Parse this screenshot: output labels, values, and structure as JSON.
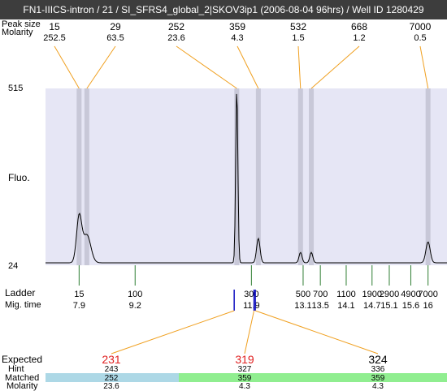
{
  "title": "FN1-IIICS-intron / 21 / SI_SFRS4_global_2|SKOV3ip1 (2006-08-04 96hrs) / Well ID 1280429",
  "labels": {
    "peak_size": "Peak size",
    "molarity": "Molarity",
    "fluo": "Fluo.",
    "ladder": "Ladder",
    "mig_time": "Mig. time",
    "expected": "Expected",
    "hint": "Hint",
    "matched": "Matched",
    "molarity_bottom": "Molarity"
  },
  "colors": {
    "plot_bg": "#e6e6f5",
    "band": "#c8c8d8",
    "connector": "#f0a020",
    "ladder_tick": "#2e7d32",
    "marker": "#1010c0",
    "expected_text": "#e02020",
    "matched_bg_1": "#add8e6",
    "matched_bg_2": "#90ee90"
  },
  "chart_data": {
    "type": "line",
    "title": "FN1-IIICS-intron / 21 / SI_SFRS4_global_2|SKOV3ip1 (2006-08-04 96hrs) / Well ID 1280429",
    "ylabel": "Fluo.",
    "ylim": [
      24,
      515
    ],
    "y_ticks": [
      "515",
      "24"
    ],
    "peaks": [
      {
        "size": "15",
        "molarity": "252.5",
        "mig_time": 7.9,
        "height": 0.26
      },
      {
        "size": "29",
        "molarity": "63.5",
        "mig_time": 8.08,
        "height": 0.16
      },
      {
        "size": "252",
        "molarity": "23.6",
        "mig_time": 11.56,
        "height": 1.0
      },
      {
        "size": "359",
        "molarity": "4.3",
        "mig_time": 12.06,
        "height": 0.14
      },
      {
        "size": "532",
        "molarity": "1.5",
        "mig_time": 13.04,
        "height": 0.06
      },
      {
        "size": "668",
        "molarity": "1.2",
        "mig_time": 13.29,
        "height": 0.06
      },
      {
        "size": "7000",
        "molarity": "0.5",
        "mig_time": 16.0,
        "height": 0.12
      }
    ],
    "ladder": [
      {
        "size": "15",
        "mig_time": "7.9"
      },
      {
        "size": "100",
        "mig_time": "9.2"
      },
      {
        "size": "300",
        "mig_time": "11.9"
      },
      {
        "size": "500",
        "mig_time": "13.1"
      },
      {
        "size": "700",
        "mig_time": "13.5"
      },
      {
        "size": "1100",
        "mig_time": "14.1"
      },
      {
        "size": "1900",
        "mig_time": "14.7"
      },
      {
        "size": "2900",
        "mig_time": "15.1"
      },
      {
        "size": "4900",
        "mig_time": "15.6"
      },
      {
        "size": "7000",
        "mig_time": "16"
      }
    ],
    "expected": [
      {
        "expected": "231",
        "hint": "243",
        "matched": "252",
        "molarity": "23.6",
        "marker_mig_time": 11.5
      },
      {
        "expected": "319",
        "hint": "327",
        "matched": "359",
        "molarity": "4.3",
        "marker_mig_time": 11.96
      },
      {
        "expected": "324",
        "hint": "336",
        "matched": "359",
        "molarity": "4.3",
        "marker_mig_time": 11.99
      }
    ]
  }
}
